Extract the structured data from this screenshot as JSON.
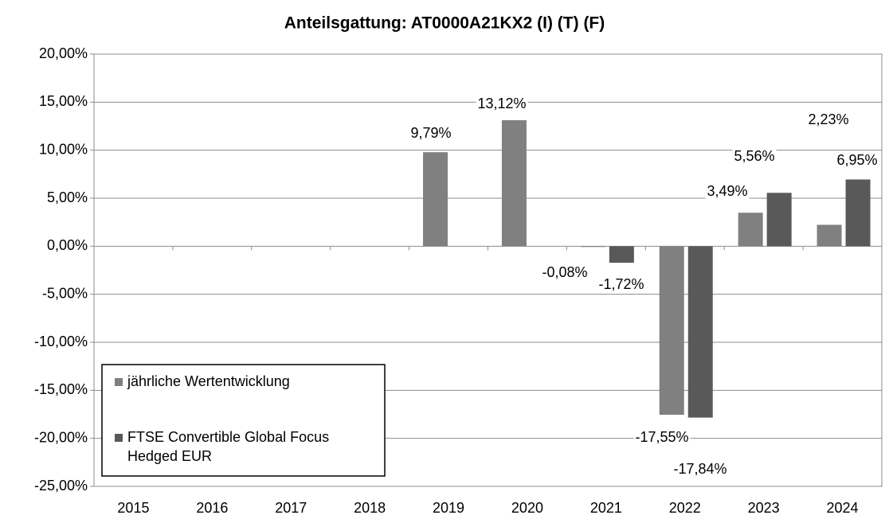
{
  "chart_data": {
    "type": "bar",
    "title": "Anteilsgattung: AT0000A21KX2 (I) (T) (F)",
    "categories": [
      "2015",
      "2016",
      "2017",
      "2018",
      "2019",
      "2020",
      "2021",
      "2022",
      "2023",
      "2024"
    ],
    "series": [
      {
        "name": "jährliche Wertentwicklung",
        "color": "#808080",
        "values": [
          null,
          null,
          null,
          null,
          9.79,
          13.12,
          -0.08,
          -17.55,
          3.49,
          2.23
        ],
        "value_labels": [
          null,
          null,
          null,
          null,
          "9,79%",
          "13,12%",
          "-0,08%",
          "-17,55%",
          "3,49%",
          "2,23%"
        ]
      },
      {
        "name": "FTSE Convertible Global Focus Hedged EUR",
        "color": "#595959",
        "values": [
          null,
          null,
          null,
          null,
          null,
          null,
          -1.72,
          -17.84,
          5.56,
          6.95
        ],
        "value_labels": [
          null,
          null,
          null,
          null,
          null,
          null,
          "-1,72%",
          "-17,84%",
          "5,56%",
          "6,95%"
        ]
      }
    ],
    "ylim": [
      -25,
      20
    ],
    "yticks": [
      {
        "value": -25,
        "label": "-25,00%"
      },
      {
        "value": -20,
        "label": "-20,00%"
      },
      {
        "value": -15,
        "label": "-15,00%"
      },
      {
        "value": -10,
        "label": "-10,00%"
      },
      {
        "value": -5,
        "label": "-5,00%"
      },
      {
        "value": 0,
        "label": "0,00%"
      },
      {
        "value": 5,
        "label": "5,00%"
      },
      {
        "value": 10,
        "label": "10,00%"
      },
      {
        "value": 15,
        "label": "15,00%"
      },
      {
        "value": 20,
        "label": "20,00%"
      }
    ],
    "grid": true,
    "legend": "lower left"
  }
}
